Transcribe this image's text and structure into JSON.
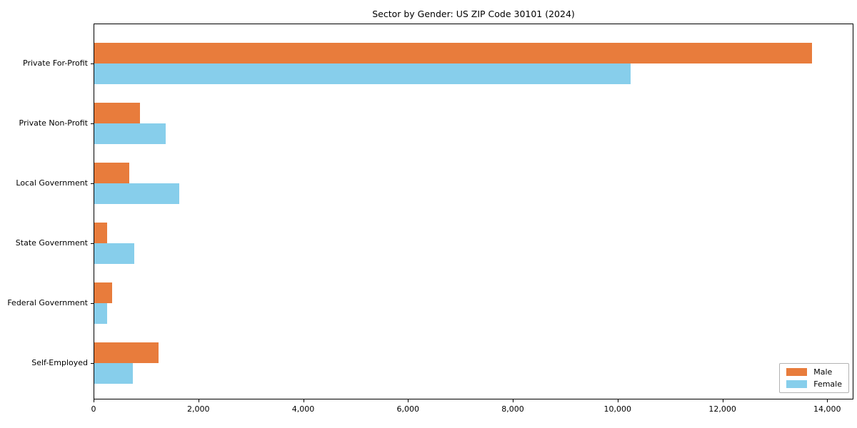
{
  "chart_data": {
    "type": "bar",
    "orientation": "horizontal",
    "title": "Sector by Gender: US ZIP Code 30101 (2024)",
    "categories": [
      "Private For-Profit",
      "Private Non-Profit",
      "Local Government",
      "State Government",
      "Federal Government",
      "Self-Employed"
    ],
    "series": [
      {
        "name": "Male",
        "color": "#e87c3c",
        "values": [
          13690,
          865,
          670,
          250,
          340,
          1225
        ]
      },
      {
        "name": "Female",
        "color": "#87ceeb",
        "values": [
          10235,
          1365,
          1620,
          760,
          245,
          730
        ]
      }
    ],
    "xlabel": "",
    "ylabel": "",
    "xlim": [
      0,
      14500
    ],
    "xticks": [
      0,
      2000,
      4000,
      6000,
      8000,
      10000,
      12000,
      14000
    ],
    "xtick_labels": [
      "0",
      "2,000",
      "4,000",
      "6,000",
      "8,000",
      "10,000",
      "12,000",
      "14,000"
    ],
    "grid": false,
    "legend_position": "lower right",
    "background_color": "#ffffff",
    "axis_color": "#000000"
  }
}
